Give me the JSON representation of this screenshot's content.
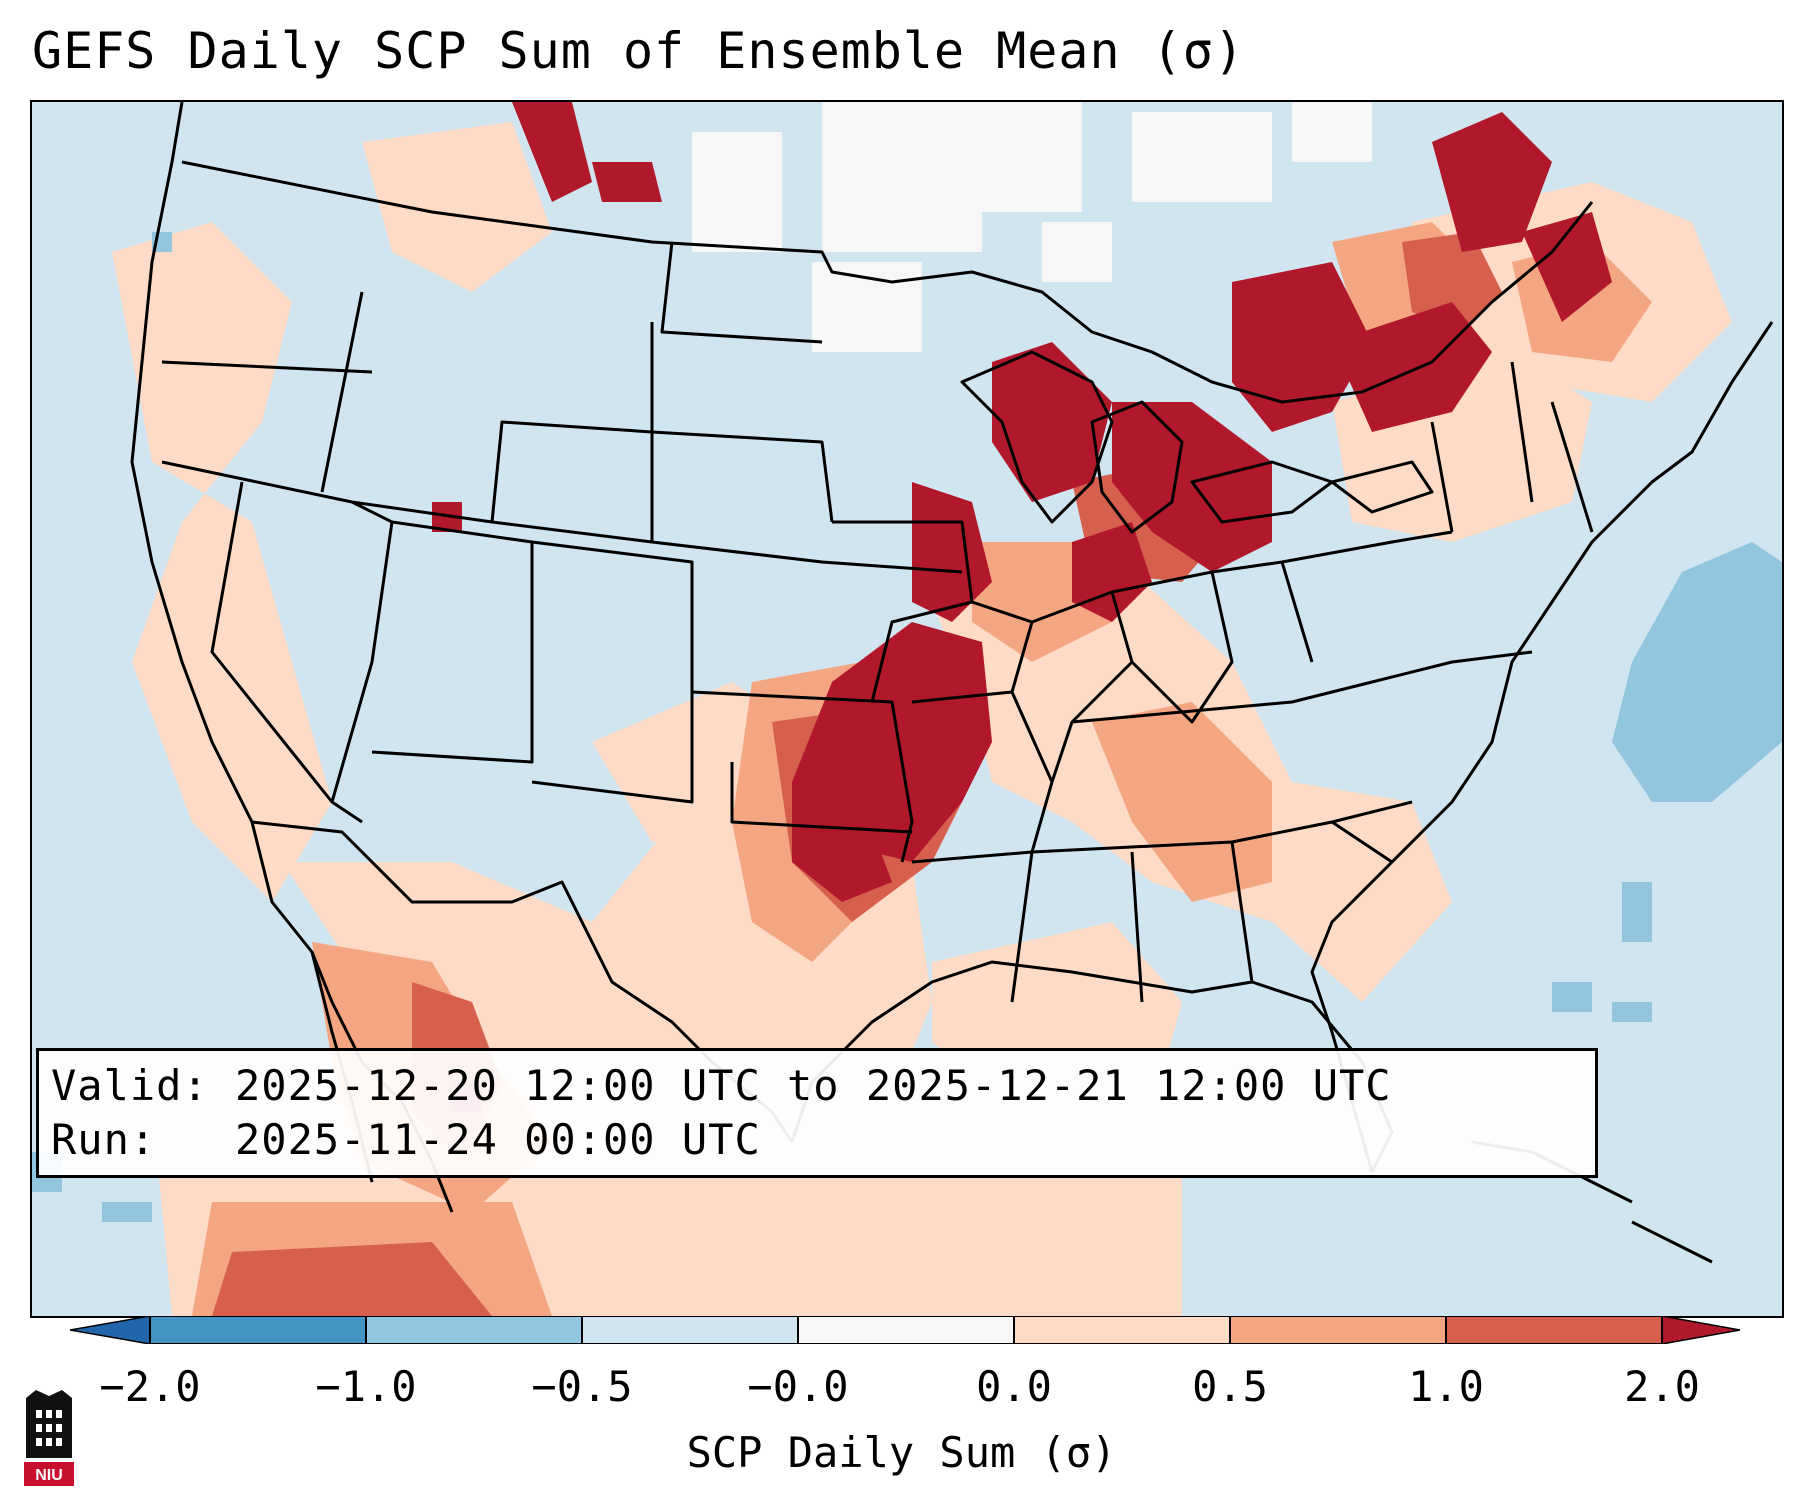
{
  "title": "GEFS Daily SCP Sum of Ensemble Mean (σ)",
  "info_box": {
    "valid_line": "Valid: 2025-12-20 12:00 UTC to 2025-12-21 12:00 UTC",
    "run_line": "Run:   2025-11-24 00:00 UTC"
  },
  "colorbar": {
    "label": "SCP Daily Sum (σ)",
    "ticks": [
      "−2.0",
      "−1.0",
      "−0.5",
      "−0.0",
      "0.0",
      "0.5",
      "1.0",
      "2.0"
    ],
    "bins": [
      {
        "range": "-2.0 to -1.0",
        "color": "#4393c3"
      },
      {
        "range": "-1.0 to -0.5",
        "color": "#92c5de"
      },
      {
        "range": "-0.5 to -0.0",
        "color": "#d1e5f0"
      },
      {
        "range": "-0.0 to 0.0",
        "color": "#f7f7f7"
      },
      {
        "range": "0.0 to 0.5",
        "color": "#fddbc7"
      },
      {
        "range": "0.5 to 1.0",
        "color": "#f4a582"
      },
      {
        "range": "1.0 to 2.0",
        "color": "#d6604d"
      },
      {
        "range": "> 2.0",
        "color": "#b2182b"
      }
    ],
    "under_color": "#2166ac",
    "over_color": "#b2182b"
  },
  "colors": {
    "background_field": "#d1e5f0",
    "land_lines": "#000000"
  },
  "logo": {
    "text": "NIU",
    "icon": "niu-logo-icon"
  }
}
